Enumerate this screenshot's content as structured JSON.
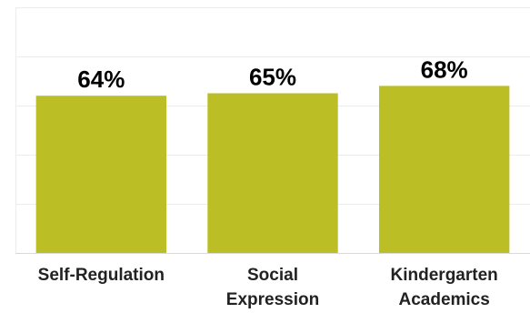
{
  "chart_data": {
    "type": "bar",
    "categories": [
      [
        "Self-Regulation"
      ],
      [
        "Social",
        "Expression"
      ],
      [
        "Kindergarten",
        "Academics"
      ]
    ],
    "values": [
      64,
      65,
      68
    ],
    "data_labels": [
      "64%",
      "65%",
      "68%"
    ],
    "ylim": [
      0,
      100
    ],
    "grid": true,
    "legend": "none",
    "title": "",
    "xlabel": "",
    "ylabel": "",
    "colors": {
      "bar": "#bcbe26",
      "grid": "#ececec",
      "axis": "#d9d9d9"
    }
  }
}
